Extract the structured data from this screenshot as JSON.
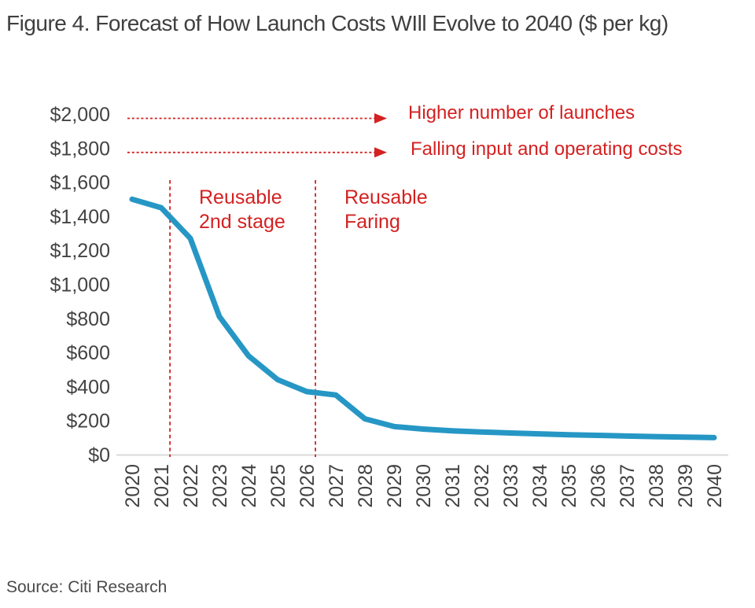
{
  "title": "Figure 4. Forecast of How Launch Costs WIll Evolve to 2040 ($ per kg)",
  "source": "Source: Citi Research",
  "colors": {
    "line_blue": "#2697c5",
    "accent_red": "#d42121",
    "axis_gray": "#d9d9d9",
    "text_gray": "#434343"
  },
  "annotations": {
    "arrows": [
      {
        "text": "Higher number of launches",
        "level": 2000
      },
      {
        "text": "Falling input and operating costs",
        "level": 1800
      }
    ],
    "regions": [
      {
        "line1": "Reusable",
        "line2": "2nd stage",
        "at_year": 2021.3
      },
      {
        "line1": "Reusable",
        "line2": "Faring",
        "at_year": 2026.3
      }
    ]
  },
  "chart_data": {
    "type": "line",
    "title": "Figure 4. Forecast of How Launch Costs WIll Evolve to 2040 ($ per kg)",
    "x": [
      2020,
      2021,
      2022,
      2023,
      2024,
      2025,
      2026,
      2027,
      2028,
      2029,
      2030,
      2031,
      2032,
      2033,
      2034,
      2035,
      2036,
      2037,
      2038,
      2039,
      2040
    ],
    "series": [
      {
        "name": "Launch cost ($ per kg)",
        "values": [
          1500,
          1450,
          1270,
          810,
          580,
          440,
          370,
          350,
          210,
          165,
          150,
          140,
          133,
          127,
          122,
          117,
          113,
          109,
          106,
          103,
          100
        ]
      }
    ],
    "ylim": [
      0,
      2000
    ],
    "y_tick_step": 200,
    "y_tick_values": [
      2000,
      1800,
      1600,
      1400,
      1200,
      1000,
      800,
      600,
      400,
      200,
      0
    ],
    "y_tick_labels": [
      "$2,000",
      "$1,800",
      "$1,600",
      "$1,400",
      "$1,200",
      "$1,000",
      "$800",
      "$600",
      "$400",
      "$200",
      "$0"
    ],
    "grid": "off",
    "legend": "none",
    "vlines_dashed_at_years": [
      2021.3,
      2026.3
    ],
    "harrows_dashed_at_levels": [
      2000,
      1800
    ]
  }
}
